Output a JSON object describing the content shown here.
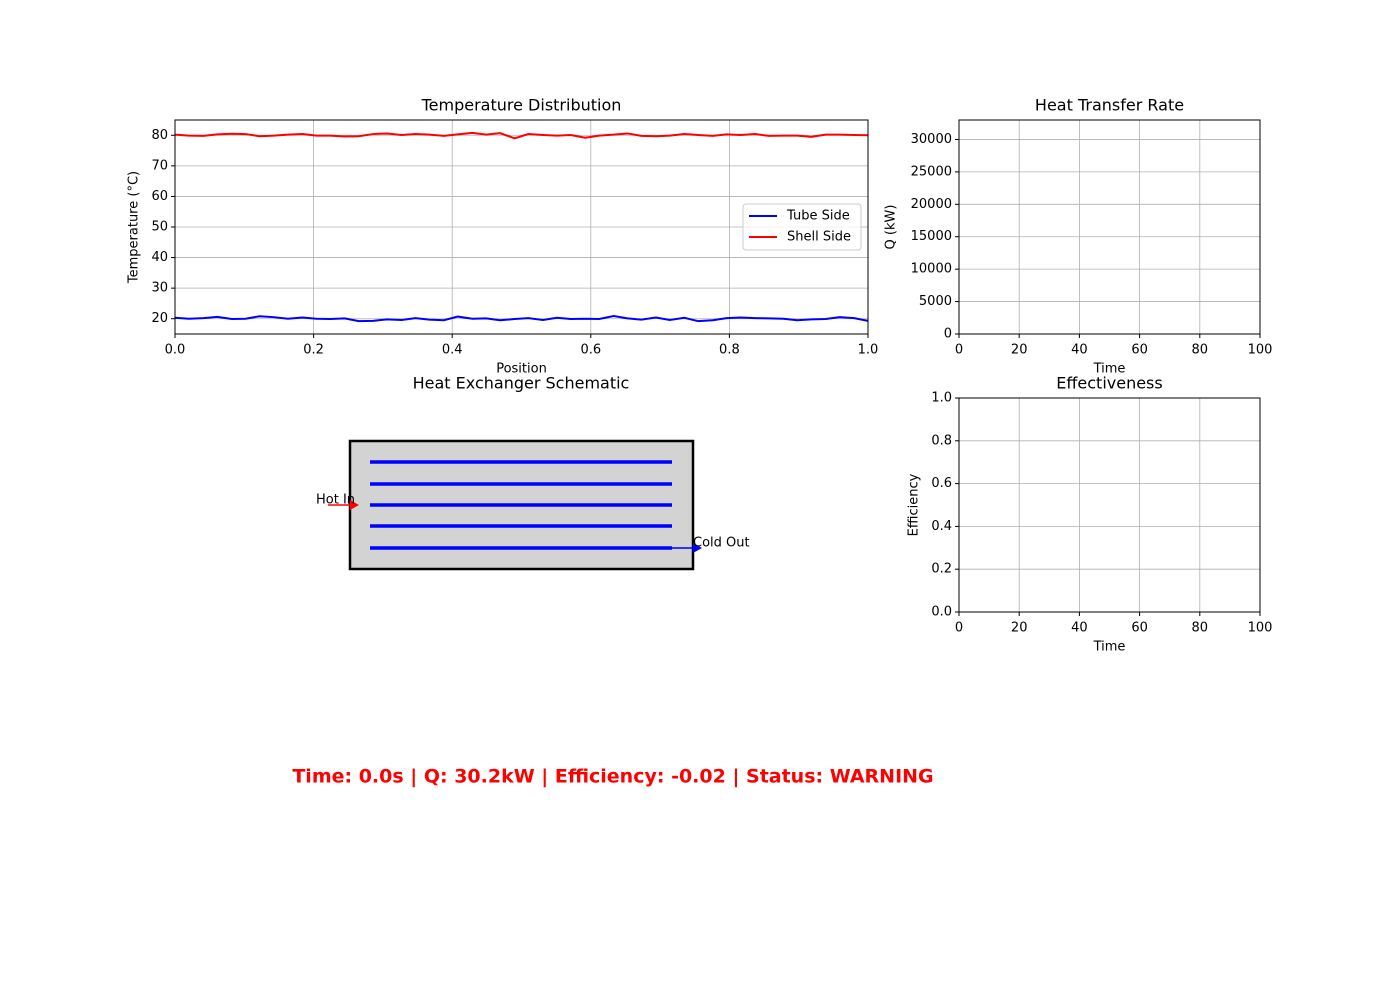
{
  "chart_data": [
    {
      "type": "line",
      "title": "Temperature Distribution",
      "x_label": "Position",
      "y_label": "Temperature (°C)",
      "x": [
        0,
        0.02,
        0.041,
        0.061,
        0.082,
        0.102,
        0.122,
        0.143,
        0.163,
        0.184,
        0.204,
        0.224,
        0.245,
        0.265,
        0.286,
        0.306,
        0.327,
        0.347,
        0.367,
        0.388,
        0.408,
        0.429,
        0.449,
        0.469,
        0.49,
        0.51,
        0.531,
        0.551,
        0.571,
        0.592,
        0.612,
        0.633,
        0.653,
        0.673,
        0.694,
        0.714,
        0.735,
        0.755,
        0.776,
        0.796,
        0.816,
        0.837,
        0.857,
        0.878,
        0.898,
        0.918,
        0.939,
        0.959,
        0.98,
        1
      ],
      "series": [
        {
          "name": "Tube Side",
          "color": "#0000ff",
          "values": [
            20.3,
            20.0,
            20.2,
            20.6,
            19.9,
            20.0,
            20.8,
            20.5,
            20.0,
            20.4,
            20.0,
            19.9,
            20.1,
            19.2,
            19.3,
            19.8,
            19.6,
            20.2,
            19.7,
            19.5,
            20.7,
            20.0,
            20.1,
            19.5,
            19.9,
            20.2,
            19.6,
            20.3,
            19.9,
            20.0,
            19.9,
            20.9,
            20.1,
            19.7,
            20.4,
            19.6,
            20.3,
            19.2,
            19.5,
            20.2,
            20.4,
            20.2,
            20.1,
            20.0,
            19.5,
            19.8,
            19.9,
            20.5,
            20.2,
            19.3
          ]
        },
        {
          "name": "Shell Side",
          "color": "#ff0000",
          "values": [
            80.2,
            79.9,
            79.8,
            80.3,
            80.5,
            80.4,
            79.7,
            79.9,
            80.2,
            80.4,
            79.9,
            79.9,
            79.6,
            79.7,
            80.4,
            80.6,
            80.1,
            80.4,
            80.2,
            79.8,
            80.3,
            80.8,
            80.2,
            80.7,
            79.0,
            80.4,
            80.1,
            79.9,
            80.1,
            79.2,
            79.9,
            80.2,
            80.6,
            79.8,
            79.7,
            79.9,
            80.4,
            80.1,
            79.8,
            80.3,
            80.1,
            80.4,
            79.8,
            79.9,
            79.9,
            79.5,
            80.2,
            80.2,
            80.1,
            80.0
          ]
        }
      ],
      "xlim": [
        0,
        1
      ],
      "ylim": [
        15,
        85
      ],
      "xticks": [
        {
          "value": 0,
          "label": "0.0"
        },
        {
          "value": 0.2,
          "label": "0.2"
        },
        {
          "value": 0.4,
          "label": "0.4"
        },
        {
          "value": 0.6,
          "label": "0.6"
        },
        {
          "value": 0.8,
          "label": "0.8"
        },
        {
          "value": 1,
          "label": "1.0"
        }
      ],
      "yticks": [
        20,
        30,
        40,
        50,
        60,
        70,
        80
      ],
      "grid": true,
      "legend": "center right"
    },
    {
      "type": "line",
      "title": "Heat Transfer Rate",
      "x_label": "Time",
      "y_label": "Q (kW)",
      "xlim": [
        0,
        100
      ],
      "ylim": [
        0,
        33000
      ],
      "xticks": [
        0,
        20,
        40,
        60,
        80,
        100
      ],
      "yticks": [
        0,
        5000,
        10000,
        15000,
        20000,
        25000,
        30000
      ],
      "grid": true
    },
    {
      "type": "line",
      "title": "Effectiveness",
      "x_label": "Time",
      "y_label": "Efficiency",
      "xlim": [
        0,
        100
      ],
      "ylim": [
        0,
        1
      ],
      "xticks": [
        0,
        20,
        40,
        60,
        80,
        100
      ],
      "yticks": [
        {
          "value": 0,
          "label": "0.0"
        },
        {
          "value": 0.2,
          "label": "0.2"
        },
        {
          "value": 0.4,
          "label": "0.4"
        },
        {
          "value": 0.6,
          "label": "0.6"
        },
        {
          "value": 0.8,
          "label": "0.8"
        },
        {
          "value": 1,
          "label": "1.0"
        }
      ],
      "grid": true
    }
  ],
  "schematic": {
    "title": "Heat Exchanger Schematic",
    "inlet_label": "Hot In",
    "outlet_label": "Cold Out"
  },
  "status": {
    "text": "Time: 0.0s | Q: 30.2kW | Efficiency: -0.02 | Status: WARNING",
    "color": "#ff0000"
  }
}
